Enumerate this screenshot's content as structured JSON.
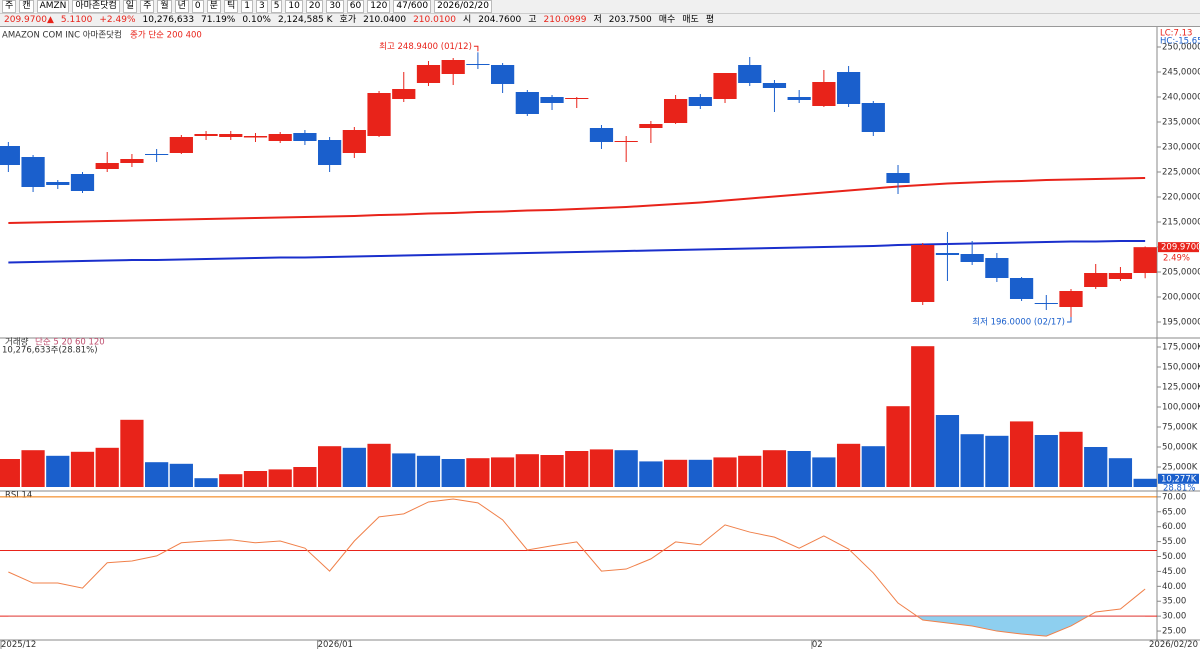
{
  "toolbar": {
    "row1": [
      "주",
      "캔",
      "AMZN",
      "아마존닷컴",
      "일",
      "주",
      "월",
      "년",
      "0",
      "분",
      "틱",
      "1",
      "3",
      "5",
      "10",
      "20",
      "30",
      "60",
      "120",
      "47/600",
      "2026/02/20"
    ],
    "row2": [
      "209.9700▲",
      "5.1100",
      "+2.49%",
      "10,276,633",
      "71.19%",
      "0.10%",
      "2,124,585 K",
      "호가",
      "210.0400",
      "210.0100",
      "시",
      "204.7600",
      "고",
      "210.0999",
      "저",
      "203.7500",
      "매수",
      "매도",
      "평"
    ]
  },
  "chart_data": [
    {
      "type": "candlestick",
      "title": "AMAZON COM INC  아마존닷컴",
      "subtitle": "종가 단순 200 400",
      "categories": [
        "2025/12",
        null,
        null,
        null,
        null,
        null,
        null,
        null,
        null,
        null,
        null,
        null,
        null,
        "2026/01",
        null,
        null,
        null,
        null,
        null,
        null,
        null,
        null,
        null,
        null,
        null,
        null,
        null,
        null,
        null,
        null,
        null,
        null,
        null,
        "02",
        null,
        null,
        null,
        null,
        null,
        null,
        null,
        null,
        null,
        null,
        null,
        null,
        "2026/02/20"
      ],
      "open": [
        230.2,
        228.0,
        223.0,
        224.6,
        225.6,
        226.8,
        228.6,
        228.8,
        232.2,
        232.0,
        231.9,
        231.2,
        232.8,
        231.4,
        228.8,
        232.2,
        239.6,
        242.8,
        244.6,
        246.6,
        246.4,
        241.0,
        240.0,
        239.6,
        233.8,
        231.0,
        233.8,
        234.8,
        240.0,
        239.6,
        246.4,
        242.8,
        240.0,
        238.2,
        245.0,
        238.8,
        224.8,
        199.0,
        208.8,
        208.6,
        207.8,
        203.8,
        198.8,
        198.0,
        202.0,
        203.6,
        204.8
      ],
      "high": [
        231.0,
        228.4,
        223.4,
        225.0,
        229.0,
        228.6,
        229.6,
        232.4,
        233.2,
        233.2,
        232.8,
        233.0,
        233.4,
        232.0,
        234.0,
        241.2,
        245.0,
        247.2,
        247.8,
        248.94,
        246.8,
        241.4,
        240.4,
        240.0,
        234.4,
        232.2,
        235.2,
        240.4,
        240.6,
        244.8,
        248.0,
        243.4,
        241.4,
        245.4,
        246.2,
        239.2,
        226.4,
        210.8,
        213.0,
        211.2,
        208.8,
        204.0,
        200.4,
        201.6,
        206.6,
        206.0,
        210.0999
      ],
      "low": [
        225.0,
        221.0,
        221.6,
        220.8,
        225.0,
        226.0,
        227.0,
        228.6,
        231.4,
        231.4,
        231.0,
        230.8,
        230.4,
        225.0,
        227.8,
        232.0,
        239.0,
        242.2,
        242.4,
        245.6,
        240.8,
        236.2,
        237.4,
        237.8,
        229.6,
        227.0,
        230.8,
        234.6,
        237.6,
        238.8,
        242.2,
        237.0,
        238.8,
        238.0,
        238.0,
        232.2,
        220.6,
        198.4,
        203.2,
        206.4,
        203.0,
        199.2,
        197.4,
        196.0,
        201.6,
        203.2,
        203.75
      ],
      "close": [
        226.4,
        222.0,
        222.4,
        221.2,
        226.8,
        227.6,
        228.4,
        232.0,
        232.6,
        232.6,
        232.2,
        232.6,
        231.2,
        226.4,
        233.4,
        240.8,
        241.6,
        246.4,
        247.4,
        246.4,
        242.6,
        236.6,
        238.8,
        239.8,
        231.0,
        231.2,
        234.6,
        239.6,
        238.2,
        244.8,
        242.8,
        241.8,
        239.4,
        243.0,
        238.6,
        233.0,
        222.8,
        210.4,
        208.4,
        207.0,
        203.8,
        199.6,
        198.6,
        201.2,
        204.8,
        204.8,
        209.97
      ],
      "up_color": "#e8231a",
      "down_color": "#1a5fcc",
      "series": [
        {
          "name": "200",
          "color": "#e8231a",
          "values": [
            214.8,
            214.9,
            215.0,
            215.1,
            215.2,
            215.3,
            215.4,
            215.5,
            215.6,
            215.7,
            215.8,
            215.9,
            216.0,
            216.1,
            216.2,
            216.4,
            216.5,
            216.7,
            216.8,
            217.0,
            217.1,
            217.3,
            217.4,
            217.6,
            217.8,
            218.0,
            218.3,
            218.6,
            218.9,
            219.3,
            219.7,
            220.1,
            220.5,
            220.9,
            221.3,
            221.7,
            222.1,
            222.4,
            222.7,
            222.9,
            223.1,
            223.2,
            223.4,
            223.5,
            223.6,
            223.7,
            223.8
          ]
        },
        {
          "name": "400",
          "color": "#1a2fcc",
          "values": [
            206.9,
            207.0,
            207.1,
            207.2,
            207.3,
            207.4,
            207.4,
            207.5,
            207.6,
            207.7,
            207.8,
            207.9,
            207.9,
            208.0,
            208.1,
            208.2,
            208.3,
            208.4,
            208.5,
            208.6,
            208.7,
            208.8,
            208.9,
            209.0,
            209.1,
            209.2,
            209.3,
            209.4,
            209.5,
            209.6,
            209.7,
            209.8,
            209.9,
            210.0,
            210.1,
            210.2,
            210.4,
            210.5,
            210.6,
            210.7,
            210.8,
            210.9,
            211.0,
            211.1,
            211.1,
            211.2,
            211.2
          ]
        }
      ],
      "annotations": [
        {
          "text": "최고 248.9400 (01/12)",
          "value": 248.94,
          "field": "high"
        },
        {
          "text": "최저 196.0000 (02/17)",
          "value": 196.0,
          "field": "low"
        }
      ],
      "last_price": {
        "value": 209.97,
        "label": "209.9700"
      },
      "last_change": "2.49%",
      "corner_labels": [
        "LC:7.13",
        "HC:-15.65"
      ],
      "ylim": [
        192.4,
        253.4
      ],
      "yticks": [
        {
          "value": 195,
          "label": "195,0000"
        },
        {
          "value": 200,
          "label": "200,0000"
        },
        {
          "value": 205,
          "label": "205,0000"
        },
        {
          "value": 210,
          "label": "210,0000"
        },
        {
          "value": 215,
          "label": "215,0000"
        },
        {
          "value": 220,
          "label": "220,0000"
        },
        {
          "value": 225,
          "label": "225,0000"
        },
        {
          "value": 230,
          "label": "230,0000"
        },
        {
          "value": 235,
          "label": "235,0000"
        },
        {
          "value": 240,
          "label": "240,0000"
        },
        {
          "value": 245,
          "label": "245,0000"
        },
        {
          "value": 250,
          "label": "250,0000"
        }
      ]
    },
    {
      "type": "bar",
      "title": "거래량",
      "subtitle": "단순 5 20 60 120",
      "note": "10,276,633주(28.81%)",
      "values": [
        35000,
        46000,
        39000,
        44000,
        49000,
        84000,
        31000,
        29000,
        11000,
        16000,
        20000,
        22000,
        25000,
        51000,
        49000,
        54000,
        42000,
        39000,
        35000,
        36000,
        37000,
        41000,
        40000,
        45000,
        47000,
        46000,
        32000,
        34000,
        34000,
        37000,
        39000,
        46000,
        45000,
        37000,
        54000,
        51000,
        101000,
        176000,
        90000,
        66000,
        64000,
        82000,
        65000,
        69000,
        50000,
        36000,
        10277
      ],
      "colors": [
        "#e8231a",
        "#e8231a",
        "#1a5fcc",
        "#e8231a",
        "#e8231a",
        "#e8231a",
        "#1a5fcc",
        "#1a5fcc",
        "#1a5fcc",
        "#e8231a",
        "#e8231a",
        "#e8231a",
        "#e8231a",
        "#e8231a",
        "#1a5fcc",
        "#e8231a",
        "#1a5fcc",
        "#1a5fcc",
        "#1a5fcc",
        "#e8231a",
        "#e8231a",
        "#e8231a",
        "#e8231a",
        "#e8231a",
        "#e8231a",
        "#1a5fcc",
        "#1a5fcc",
        "#e8231a",
        "#1a5fcc",
        "#e8231a",
        "#e8231a",
        "#e8231a",
        "#1a5fcc",
        "#1a5fcc",
        "#e8231a",
        "#1a5fcc",
        "#e8231a",
        "#e8231a",
        "#1a5fcc",
        "#1a5fcc",
        "#1a5fcc",
        "#e8231a",
        "#1a5fcc",
        "#e8231a",
        "#1a5fcc",
        "#1a5fcc",
        "#1a5fcc"
      ],
      "value_labels_last": [
        "10,277K",
        "28.81%"
      ],
      "ylim": [
        0,
        183750
      ],
      "yticks": [
        {
          "value": 25000,
          "label": "25,000K"
        },
        {
          "value": 50000,
          "label": "50,000K"
        },
        {
          "value": 75000,
          "label": "75,000K"
        },
        {
          "value": 100000,
          "label": "100,000K"
        },
        {
          "value": 125000,
          "label": "125,000K"
        },
        {
          "value": 150000,
          "label": "150,000K"
        },
        {
          "value": 175000,
          "label": "175,000K"
        }
      ]
    },
    {
      "type": "line",
      "title": "RSI 14",
      "color": "#f0804a",
      "fill_color": "#8ecfef",
      "values": [
        44.8,
        41.1,
        41.1,
        39.4,
        47.9,
        48.5,
        50.2,
        54.6,
        55.2,
        55.6,
        54.6,
        55.2,
        52.8,
        45.1,
        55.2,
        63.3,
        64.3,
        68.3,
        69.3,
        68.0,
        62.3,
        52.2,
        53.6,
        54.9,
        45.1,
        45.8,
        49.2,
        54.9,
        53.9,
        60.6,
        58.2,
        56.5,
        52.8,
        56.9,
        52.5,
        44.5,
        34.4,
        28.7,
        27.7,
        26.7,
        25.0,
        24.0,
        23.3,
        26.7,
        31.4,
        32.4,
        39.1
      ],
      "hlines": [
        {
          "value": 70,
          "color": "#f07800"
        },
        {
          "value": 52,
          "color": "#e8231a"
        },
        {
          "value": 30,
          "color": "#e8231a"
        }
      ],
      "fill_below": 30,
      "ylim": [
        22,
        71.3
      ],
      "yticks": [
        {
          "value": 25,
          "label": "25.00"
        },
        {
          "value": 30,
          "label": "30.00"
        },
        {
          "value": 35,
          "label": "35.00"
        },
        {
          "value": 40,
          "label": "40.00"
        },
        {
          "value": 45,
          "label": "45.00"
        },
        {
          "value": 50,
          "label": "50.00"
        },
        {
          "value": 55,
          "label": "55.00"
        },
        {
          "value": 60,
          "label": "60.00"
        },
        {
          "value": 65,
          "label": "65.00"
        },
        {
          "value": 70,
          "label": "70.00"
        }
      ]
    }
  ]
}
